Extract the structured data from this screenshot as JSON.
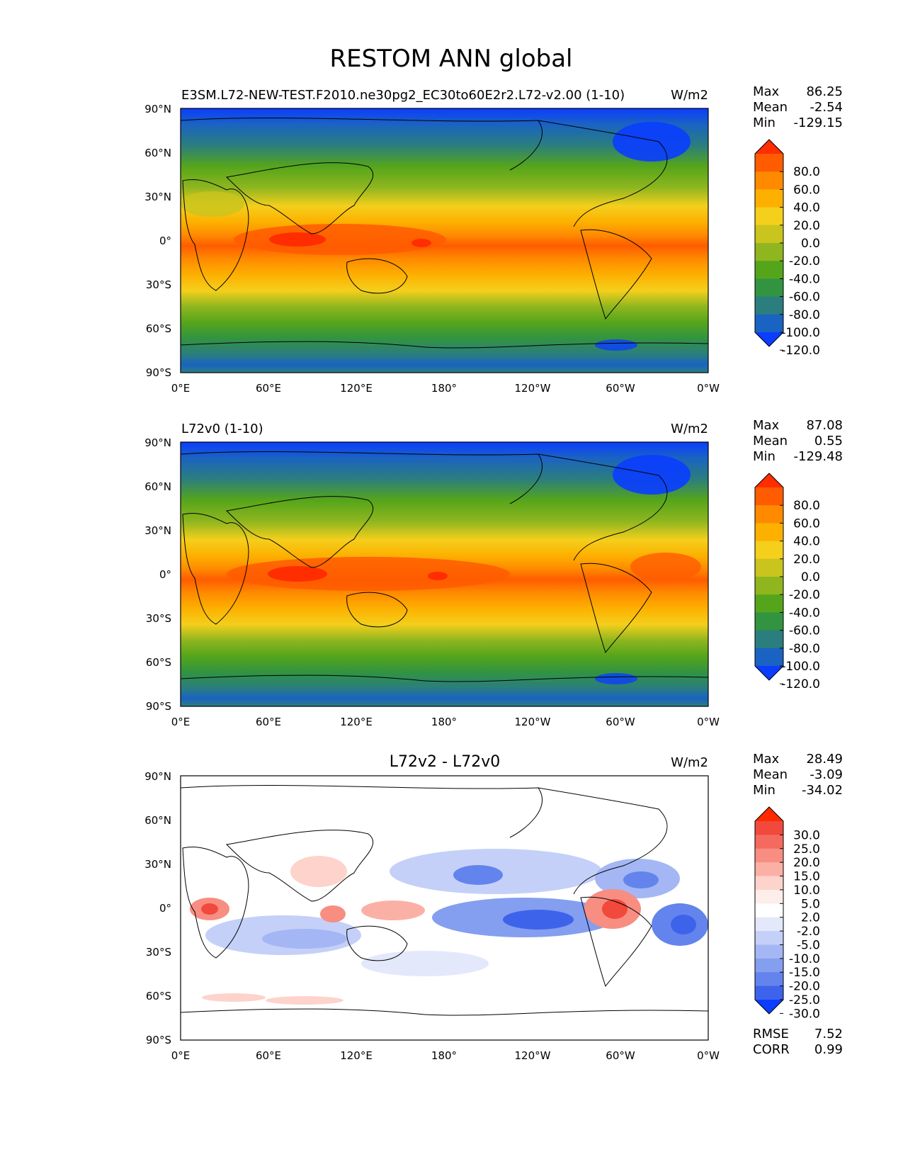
{
  "title": "RESTOM ANN global",
  "chart_data": [
    {
      "type": "heatmap",
      "title": "E3SM.L72-NEW-TEST.F2010.ne30pg2_EC30to60E2r2.L72-v2.00 (1-10)",
      "units": "W/m2",
      "xticks": [
        "0°E",
        "60°E",
        "120°E",
        "180°",
        "120°W",
        "60°W",
        "0°W"
      ],
      "yticks": [
        "90°N",
        "60°N",
        "30°N",
        "0°",
        "30°S",
        "60°S",
        "90°S"
      ],
      "xlim": [
        0,
        360
      ],
      "ylim": [
        -90,
        90
      ],
      "stats": [
        {
          "label": "Max",
          "value": "86.25"
        },
        {
          "label": "Mean",
          "value": "-2.54"
        },
        {
          "label": "Min",
          "value": "-129.15"
        }
      ],
      "colorbar": {
        "labels": [
          "80.0",
          "60.0",
          "40.0",
          "20.0",
          "0.0",
          "-20.0",
          "-40.0",
          "-60.0",
          "-80.0",
          "-100.0",
          "-120.0"
        ],
        "colors": [
          "#ff2d00",
          "#ff5c00",
          "#ff8a00",
          "#fdb000",
          "#f4cf1c",
          "#c9c41e",
          "#8fb61f",
          "#55a51b",
          "#329440",
          "#2b7e7d",
          "#1a63c2",
          "#0a3dff"
        ]
      }
    },
    {
      "type": "heatmap",
      "title": "L72v0 (1-10)",
      "units": "W/m2",
      "xticks": [
        "0°E",
        "60°E",
        "120°E",
        "180°",
        "120°W",
        "60°W",
        "0°W"
      ],
      "yticks": [
        "90°N",
        "60°N",
        "30°N",
        "0°",
        "30°S",
        "60°S",
        "90°S"
      ],
      "xlim": [
        0,
        360
      ],
      "ylim": [
        -90,
        90
      ],
      "stats": [
        {
          "label": "Max",
          "value": "87.08"
        },
        {
          "label": "Mean",
          "value": "0.55"
        },
        {
          "label": "Min",
          "value": "-129.48"
        }
      ],
      "colorbar": {
        "labels": [
          "80.0",
          "60.0",
          "40.0",
          "20.0",
          "0.0",
          "-20.0",
          "-40.0",
          "-60.0",
          "-80.0",
          "-100.0",
          "-120.0"
        ],
        "colors": [
          "#ff2d00",
          "#ff5c00",
          "#ff8a00",
          "#fdb000",
          "#f4cf1c",
          "#c9c41e",
          "#8fb61f",
          "#55a51b",
          "#329440",
          "#2b7e7d",
          "#1a63c2",
          "#0a3dff"
        ]
      }
    },
    {
      "type": "heatmap",
      "title": "L72v2 - L72v0",
      "units": "W/m2",
      "xticks": [
        "0°E",
        "60°E",
        "120°E",
        "180°",
        "120°W",
        "60°W",
        "0°W"
      ],
      "yticks": [
        "90°N",
        "60°N",
        "30°N",
        "0°",
        "30°S",
        "60°S",
        "90°S"
      ],
      "xlim": [
        0,
        360
      ],
      "ylim": [
        -90,
        90
      ],
      "stats": [
        {
          "label": "Max",
          "value": "28.49"
        },
        {
          "label": "Mean",
          "value": "-3.09"
        },
        {
          "label": "Min",
          "value": "-34.02"
        }
      ],
      "extra_stats": [
        {
          "label": "RMSE",
          "value": "7.52"
        },
        {
          "label": "CORR",
          "value": "0.99"
        }
      ],
      "colorbar": {
        "labels": [
          "30.0",
          "25.0",
          "20.0",
          "15.0",
          "10.0",
          "5.0",
          "2.0",
          "-2.0",
          "-5.0",
          "-10.0",
          "-15.0",
          "-20.0",
          "-25.0",
          "-30.0"
        ],
        "colors": [
          "#ff2a00",
          "#f1493b",
          "#f56a5e",
          "#f88d82",
          "#fbb0a6",
          "#fdd3cc",
          "#fdeeea",
          "#ffffff",
          "#e3e8fb",
          "#c4d0f8",
          "#a4b7f4",
          "#849ef0",
          "#6384ec",
          "#3e63eb",
          "#0a3dff"
        ]
      }
    }
  ]
}
